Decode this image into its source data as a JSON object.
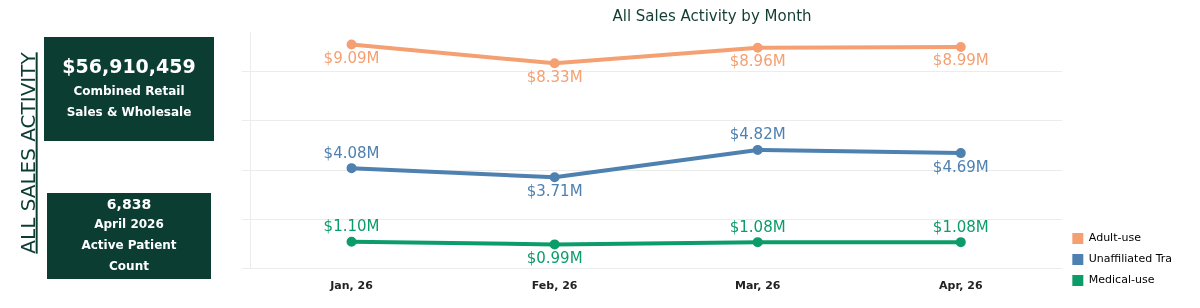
{
  "chart_data": {
    "type": "line",
    "title": "All Sales Activity by Month",
    "categories": [
      "Jan, 26",
      "Feb, 26",
      "Mar, 26",
      "Apr, 26"
    ],
    "series": [
      {
        "name": "Adult-use",
        "color": "#f4a072",
        "values": [
          9.09,
          8.33,
          8.96,
          8.99
        ],
        "value_labels": [
          "$9.09M",
          "$8.33M",
          "$8.96M",
          "$8.99M"
        ]
      },
      {
        "name": "Unaffiliated Tra",
        "color": "#4e81b0",
        "values": [
          4.08,
          3.71,
          4.82,
          4.69
        ],
        "value_labels": [
          "$4.08M",
          "$3.71M",
          "$4.82M",
          "$4.69M"
        ]
      },
      {
        "name": "Medical-use",
        "color": "#0c9c6a",
        "values": [
          1.1,
          0.99,
          1.08,
          1.08
        ],
        "value_labels": [
          "$1.10M",
          "$0.99M",
          "$1.08M",
          "$1.08M"
        ]
      }
    ],
    "ylim": [
      0,
      9.6
    ],
    "yticks": [
      {
        "value": 0,
        "label": null
      },
      {
        "value": 2,
        "label": null
      },
      {
        "value": 4,
        "label": null
      },
      {
        "value": 6,
        "label": null
      },
      {
        "value": 8,
        "label": null
      }
    ],
    "tick_labels": "x",
    "grid": "y",
    "legend": "bottom right",
    "marker": "circle",
    "line_style": "solid",
    "annotations": [
      "ALL SALES ACTIVITY",
      "$56,910,459",
      "Combined Retail Sales & Wholesale",
      "6,838",
      "April 2026 Active Patient Count"
    ]
  }
}
